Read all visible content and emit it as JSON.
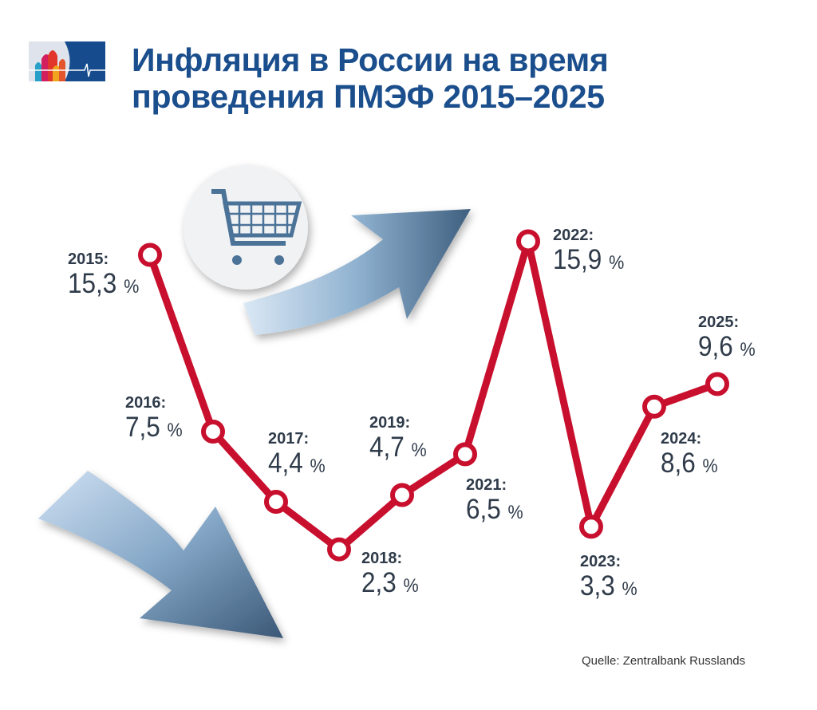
{
  "title_line1": "Инфляция в России на время",
  "title_line2": "проведения ПМЭФ 2015–2025",
  "source": "Quelle: Zentralbank Russlands",
  "icons": [
    "spief-logo",
    "shopping-cart-icon",
    "arrow-up-icon",
    "arrow-down-icon"
  ],
  "colors": {
    "title": "#1b4e8c",
    "line": "#c8102e",
    "label": "#2f3b4a"
  },
  "chart_data": {
    "type": "line",
    "categories": [
      "2015",
      "2016",
      "2017",
      "2018",
      "2019",
      "2021",
      "2022",
      "2023",
      "2024",
      "2025"
    ],
    "values": [
      15.3,
      7.5,
      4.4,
      2.3,
      4.7,
      6.5,
      15.9,
      3.3,
      8.6,
      9.6
    ],
    "year_labels": [
      "2015:",
      "2016:",
      "2017:",
      "2018:",
      "2019:",
      "2021:",
      "2022:",
      "2023:",
      "2024:",
      "2025:"
    ],
    "value_labels": [
      "15,3",
      "7,5",
      "4,4",
      "2,3",
      "4,7",
      "6,5",
      "15,9",
      "3,3",
      "8,6",
      "9,6"
    ],
    "unit": "%",
    "grid": false,
    "legend": "none"
  }
}
